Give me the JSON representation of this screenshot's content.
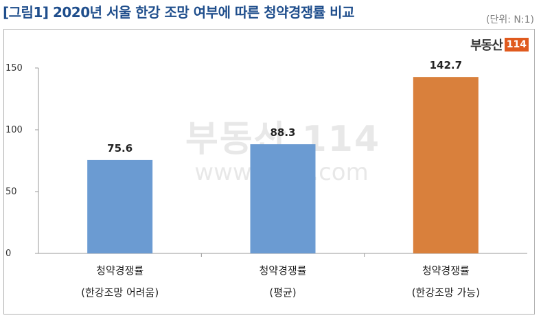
{
  "header": {
    "title": "[그림1] 2020년 서울 한강 조망 여부에 따른 청약경쟁률 비교",
    "unit": "(단위: N:1)"
  },
  "logo": {
    "text": "부동산",
    "number": "114"
  },
  "watermark": {
    "logo": "부동산 114",
    "url": "www.r114.com"
  },
  "chart_data": {
    "type": "bar",
    "categories": [
      [
        "청약경쟁률",
        "(한강조망 어려움)"
      ],
      [
        "청약경쟁률",
        "(평균)"
      ],
      [
        "청약경쟁률",
        "(한강조망 가능)"
      ]
    ],
    "values": [
      75.6,
      88.3,
      142.7
    ],
    "value_labels": [
      "75.6",
      "88.3",
      "142.7"
    ],
    "colors": [
      "#6b9bd2",
      "#6b9bd2",
      "#d9803c"
    ],
    "ylim": [
      0,
      150
    ],
    "yticks": [
      0,
      50,
      100,
      150
    ],
    "grid": false,
    "legend": "none"
  }
}
